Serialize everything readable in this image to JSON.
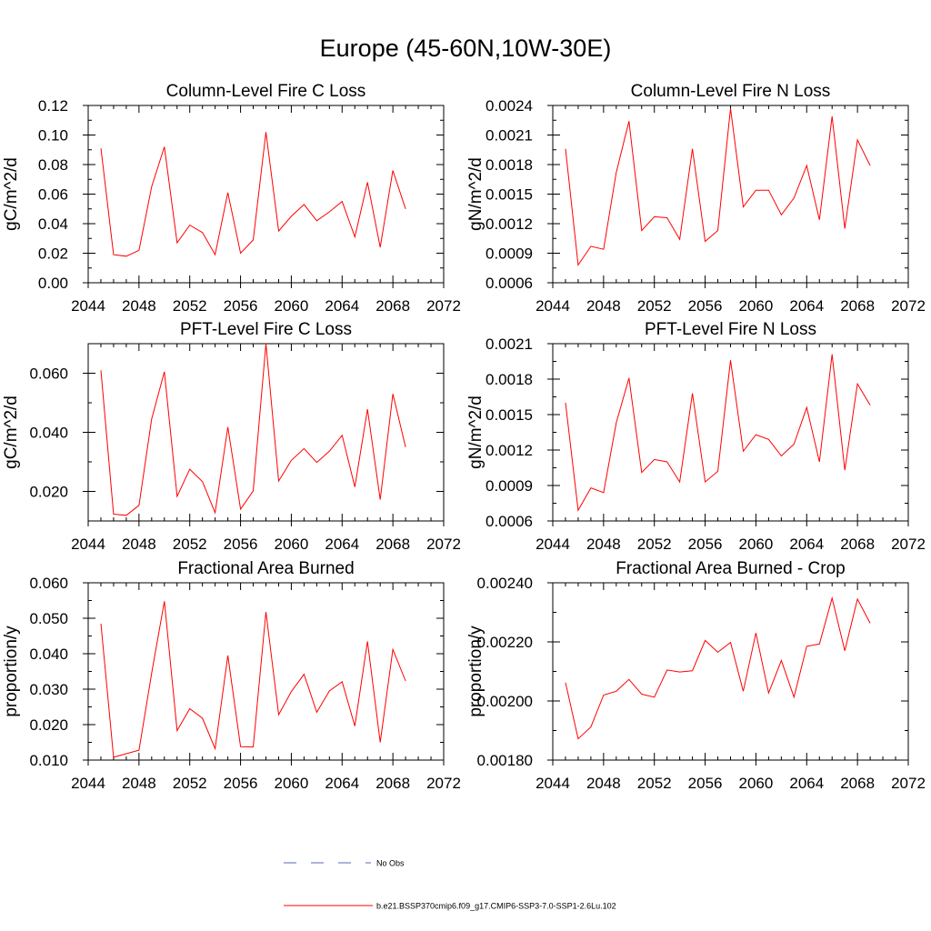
{
  "title": "Europe (45-60N,10W-30E)",
  "legend": [
    {
      "label": "No Obs",
      "color": "#5a6ab4",
      "dash": true
    },
    {
      "label": "b.e21.BSSP370cmip6.f09_g17.CMIP6-SSP3-7.0-SSP1-2.6Lu.102",
      "color": "#ff0000",
      "dash": false
    }
  ],
  "chart_data": [
    {
      "type": "line",
      "title": "Column-Level Fire C Loss",
      "ylabel": "gC/m^2/d",
      "xlim": [
        2044,
        2072
      ],
      "ylim": [
        0.0,
        0.12
      ],
      "xticks": [
        "2044",
        "2048",
        "2052",
        "2056",
        "2060",
        "2064",
        "2068",
        "2072"
      ],
      "yticks": [
        {
          "v": 0.0,
          "label": "0.00"
        },
        {
          "v": 0.02,
          "label": "0.02"
        },
        {
          "v": 0.04,
          "label": "0.04"
        },
        {
          "v": 0.06,
          "label": "0.06"
        },
        {
          "v": 0.08,
          "label": "0.08"
        },
        {
          "v": 0.1,
          "label": "0.10"
        },
        {
          "v": 0.12,
          "label": "0.12"
        }
      ],
      "x": [
        2045,
        2046,
        2047,
        2048,
        2049,
        2050,
        2051,
        2052,
        2053,
        2054,
        2055,
        2056,
        2057,
        2058,
        2059,
        2060,
        2061,
        2062,
        2063,
        2064,
        2065,
        2066,
        2067,
        2068,
        2069
      ],
      "series": [
        {
          "name": "b.e21.BSSP370cmip6.f09_g17.CMIP6-SSP3-7.0-SSP1-2.6Lu.102",
          "color": "#ff0000",
          "values": [
            0.091,
            0.019,
            0.018,
            0.022,
            0.065,
            0.092,
            0.027,
            0.039,
            0.034,
            0.019,
            0.061,
            0.02,
            0.029,
            0.102,
            0.035,
            0.045,
            0.053,
            0.042,
            0.048,
            0.055,
            0.031,
            0.068,
            0.024,
            0.076,
            0.05
          ]
        }
      ]
    },
    {
      "type": "line",
      "title": "Column-Level Fire N Loss",
      "ylabel": "gN/m^2/d",
      "xlim": [
        2044,
        2072
      ],
      "ylim": [
        0.0006,
        0.0024
      ],
      "xticks": [
        "2044",
        "2048",
        "2052",
        "2056",
        "2060",
        "2064",
        "2068",
        "2072"
      ],
      "yticks": [
        {
          "v": 0.0006,
          "label": "0.0006"
        },
        {
          "v": 0.0009,
          "label": "0.0009"
        },
        {
          "v": 0.0012,
          "label": "0.0012"
        },
        {
          "v": 0.0015,
          "label": "0.0015"
        },
        {
          "v": 0.0018,
          "label": "0.0018"
        },
        {
          "v": 0.0021,
          "label": "0.0021"
        },
        {
          "v": 0.0024,
          "label": "0.0024"
        }
      ],
      "x": [
        2045,
        2046,
        2047,
        2048,
        2049,
        2050,
        2051,
        2052,
        2053,
        2054,
        2055,
        2056,
        2057,
        2058,
        2059,
        2060,
        2061,
        2062,
        2063,
        2064,
        2065,
        2066,
        2067,
        2068,
        2069
      ],
      "series": [
        {
          "name": "b.e21.BSSP370cmip6.f09_g17.CMIP6-SSP3-7.0-SSP1-2.6Lu.102",
          "color": "#ff0000",
          "values": [
            0.00196,
            0.00078,
            0.00097,
            0.00094,
            0.00172,
            0.00224,
            0.00113,
            0.00127,
            0.00126,
            0.00104,
            0.00196,
            0.00102,
            0.00113,
            0.00237,
            0.00137,
            0.00154,
            0.00154,
            0.00129,
            0.00146,
            0.00179,
            0.00124,
            0.00229,
            0.00115,
            0.00205,
            0.00179
          ]
        }
      ]
    },
    {
      "type": "line",
      "title": "PFT-Level Fire C Loss",
      "ylabel": "gC/m^2/d",
      "xlim": [
        2044,
        2072
      ],
      "ylim": [
        0.01,
        0.07
      ],
      "xticks": [
        "2044",
        "2048",
        "2052",
        "2056",
        "2060",
        "2064",
        "2068",
        "2072"
      ],
      "yticks": [
        {
          "v": 0.02,
          "label": "0.020"
        },
        {
          "v": 0.04,
          "label": "0.040"
        },
        {
          "v": 0.06,
          "label": "0.060"
        }
      ],
      "x": [
        2045,
        2046,
        2047,
        2048,
        2049,
        2050,
        2051,
        2052,
        2053,
        2054,
        2055,
        2056,
        2057,
        2058,
        2059,
        2060,
        2061,
        2062,
        2063,
        2064,
        2065,
        2066,
        2067,
        2068,
        2069
      ],
      "series": [
        {
          "name": "b.e21.BSSP370cmip6.f09_g17.CMIP6-SSP3-7.0-SSP1-2.6Lu.102",
          "color": "#ff0000",
          "values": [
            0.061,
            0.0123,
            0.0119,
            0.0153,
            0.0445,
            0.0605,
            0.0183,
            0.0275,
            0.0233,
            0.0128,
            0.0418,
            0.014,
            0.0202,
            0.07,
            0.0235,
            0.0305,
            0.0345,
            0.0298,
            0.0336,
            0.039,
            0.0215,
            0.0478,
            0.0172,
            0.053,
            0.035
          ]
        }
      ]
    },
    {
      "type": "line",
      "title": "PFT-Level Fire N Loss",
      "ylabel": "gN/m^2/d",
      "xlim": [
        2044,
        2072
      ],
      "ylim": [
        0.0006,
        0.0021
      ],
      "xticks": [
        "2044",
        "2048",
        "2052",
        "2056",
        "2060",
        "2064",
        "2068",
        "2072"
      ],
      "yticks": [
        {
          "v": 0.0006,
          "label": "0.0006"
        },
        {
          "v": 0.0009,
          "label": "0.0009"
        },
        {
          "v": 0.0012,
          "label": "0.0012"
        },
        {
          "v": 0.0015,
          "label": "0.0015"
        },
        {
          "v": 0.0018,
          "label": "0.0018"
        },
        {
          "v": 0.0021,
          "label": "0.0021"
        }
      ],
      "x": [
        2045,
        2046,
        2047,
        2048,
        2049,
        2050,
        2051,
        2052,
        2053,
        2054,
        2055,
        2056,
        2057,
        2058,
        2059,
        2060,
        2061,
        2062,
        2063,
        2064,
        2065,
        2066,
        2067,
        2068,
        2069
      ],
      "series": [
        {
          "name": "b.e21.BSSP370cmip6.f09_g17.CMIP6-SSP3-7.0-SSP1-2.6Lu.102",
          "color": "#ff0000",
          "values": [
            0.0016,
            0.00069,
            0.00088,
            0.00084,
            0.00143,
            0.00181,
            0.00101,
            0.00112,
            0.0011,
            0.00093,
            0.00168,
            0.00093,
            0.00102,
            0.00196,
            0.00119,
            0.00133,
            0.00129,
            0.00115,
            0.00125,
            0.00156,
            0.0011,
            0.00201,
            0.00103,
            0.00176,
            0.00158
          ]
        }
      ]
    },
    {
      "type": "line",
      "title": "Fractional Area Burned",
      "ylabel": "proportion/y",
      "xlim": [
        2044,
        2072
      ],
      "ylim": [
        0.01,
        0.06
      ],
      "xticks": [
        "2044",
        "2048",
        "2052",
        "2056",
        "2060",
        "2064",
        "2068",
        "2072"
      ],
      "yticks": [
        {
          "v": 0.01,
          "label": "0.010"
        },
        {
          "v": 0.02,
          "label": "0.020"
        },
        {
          "v": 0.03,
          "label": "0.030"
        },
        {
          "v": 0.04,
          "label": "0.040"
        },
        {
          "v": 0.05,
          "label": "0.050"
        },
        {
          "v": 0.06,
          "label": "0.060"
        }
      ],
      "x": [
        2045,
        2046,
        2047,
        2048,
        2049,
        2050,
        2051,
        2052,
        2053,
        2054,
        2055,
        2056,
        2057,
        2058,
        2059,
        2060,
        2061,
        2062,
        2063,
        2064,
        2065,
        2066,
        2067,
        2068,
        2069
      ],
      "series": [
        {
          "name": "b.e21.BSSP370cmip6.f09_g17.CMIP6-SSP3-7.0-SSP1-2.6Lu.102",
          "color": "#ff0000",
          "values": [
            0.0485,
            0.0108,
            0.0118,
            0.0128,
            0.0345,
            0.0548,
            0.0183,
            0.0245,
            0.0218,
            0.0132,
            0.0395,
            0.0138,
            0.0137,
            0.0518,
            0.0228,
            0.0293,
            0.0342,
            0.0235,
            0.0295,
            0.0321,
            0.0196,
            0.0435,
            0.015,
            0.0412,
            0.0323
          ]
        }
      ]
    },
    {
      "type": "line",
      "title": "Fractional Area Burned - Crop",
      "ylabel": "proportion/y",
      "xlim": [
        2044,
        2072
      ],
      "ylim": [
        0.0018,
        0.0024
      ],
      "xticks": [
        "2044",
        "2048",
        "2052",
        "2056",
        "2060",
        "2064",
        "2068",
        "2072"
      ],
      "yticks": [
        {
          "v": 0.0018,
          "label": "0.00180"
        },
        {
          "v": 0.002,
          "label": "0.00200"
        },
        {
          "v": 0.0022,
          "label": "0.00220"
        },
        {
          "v": 0.0024,
          "label": "0.00240"
        }
      ],
      "x": [
        2045,
        2046,
        2047,
        2048,
        2049,
        2050,
        2051,
        2052,
        2053,
        2054,
        2055,
        2056,
        2057,
        2058,
        2059,
        2060,
        2061,
        2062,
        2063,
        2064,
        2065,
        2066,
        2067,
        2068,
        2069
      ],
      "series": [
        {
          "name": "b.e21.BSSP370cmip6.f09_g17.CMIP6-SSP3-7.0-SSP1-2.6Lu.102",
          "color": "#ff0000",
          "values": [
            0.002062,
            0.001872,
            0.001912,
            0.00202,
            0.002033,
            0.002073,
            0.002023,
            0.002013,
            0.002105,
            0.002098,
            0.002102,
            0.002205,
            0.002165,
            0.002198,
            0.002033,
            0.00223,
            0.002027,
            0.002137,
            0.002013,
            0.002185,
            0.002193,
            0.002348,
            0.00217,
            0.002345,
            0.002263
          ]
        }
      ]
    }
  ]
}
